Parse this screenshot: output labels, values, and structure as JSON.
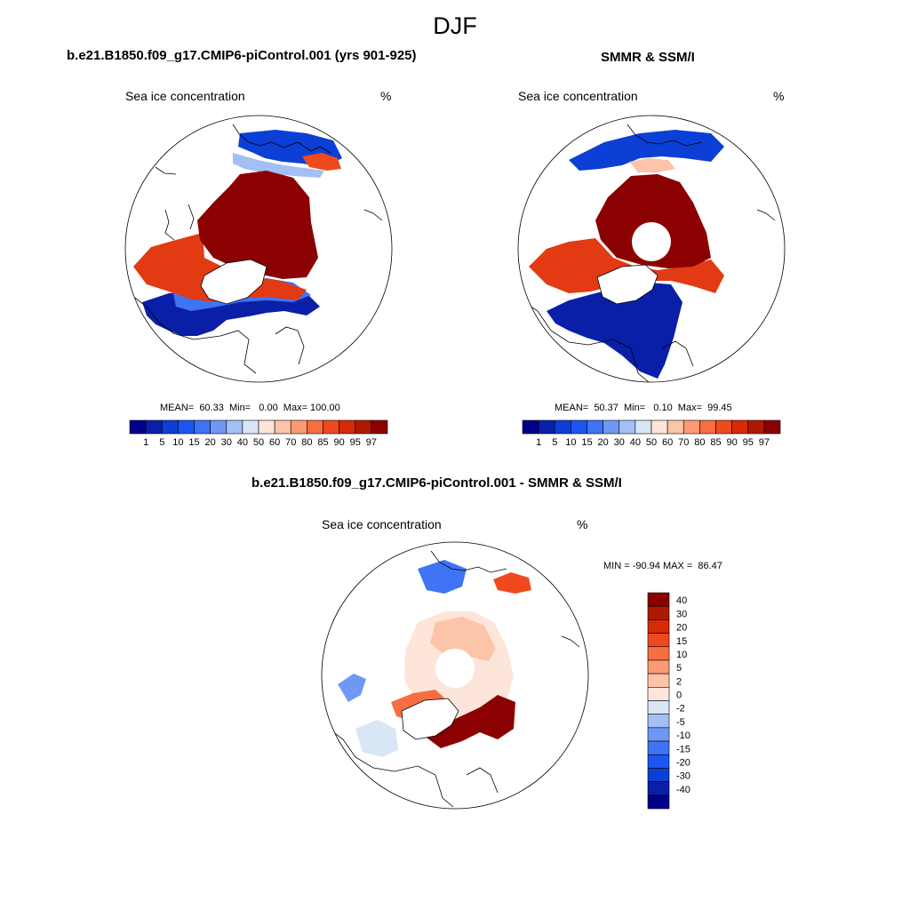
{
  "figure_title": "DJF",
  "panels": [
    {
      "title": "b.e21.B1850.f09_g17.CMIP6-piControl.001 (yrs 901-925)",
      "variable_label": "Sea ice concentration",
      "units_label": "%",
      "stats_text": "MEAN=  60.33  Min=   0.00  Max= 100.00",
      "pole_hole": false
    },
    {
      "title": "SMMR & SSM/I",
      "variable_label": "Sea ice concentration",
      "units_label": "%",
      "stats_text": "MEAN=  50.37  Min=   0.10  Max=  99.45",
      "pole_hole": true
    },
    {
      "title": "b.e21.B1850.f09_g17.CMIP6-piControl.001 - SMMR & SSM/I",
      "variable_label": "Sea ice concentration",
      "units_label": "%",
      "stats_text": "MIN = -90.94 MAX =  86.47",
      "pole_hole": true
    }
  ],
  "colorbar_concentration": {
    "labels": [
      "1",
      "5",
      "10",
      "15",
      "20",
      "30",
      "40",
      "50",
      "60",
      "70",
      "80",
      "85",
      "90",
      "95",
      "97"
    ],
    "colors": [
      "#00008b",
      "#0a1fa8",
      "#0b3fd6",
      "#1c56f2",
      "#3e74f5",
      "#6f98f4",
      "#a3bff3",
      "#d8e6f6",
      "#fde6d9",
      "#fcc4a9",
      "#fb9a74",
      "#f76e43",
      "#ef4a1e",
      "#d72a06",
      "#ad1a02",
      "#8b0000"
    ]
  },
  "colorbar_difference": {
    "labels": [
      "40",
      "30",
      "20",
      "15",
      "10",
      "5",
      "2",
      "0",
      "-2",
      "-5",
      "-10",
      "-15",
      "-20",
      "-30",
      "-40"
    ],
    "colors": [
      "#8b0000",
      "#ad1a02",
      "#d72a06",
      "#ef4a1e",
      "#f76e43",
      "#fb9a74",
      "#fcc4a9",
      "#fde6d9",
      "#d8e6f6",
      "#a3bff3",
      "#6f98f4",
      "#3e74f5",
      "#1c56f2",
      "#0b3fd6",
      "#0a1fa8",
      "#00008b"
    ]
  },
  "colors": {
    "deep_red": "#8b0000",
    "red": "#e23a12",
    "light_red": "#fcc4a9",
    "pale": "#fde6d9",
    "pale_blue": "#d8e6f6",
    "mid_blue": "#3e74f5",
    "deep_blue": "#0a1fa8",
    "coast": "#000000"
  }
}
